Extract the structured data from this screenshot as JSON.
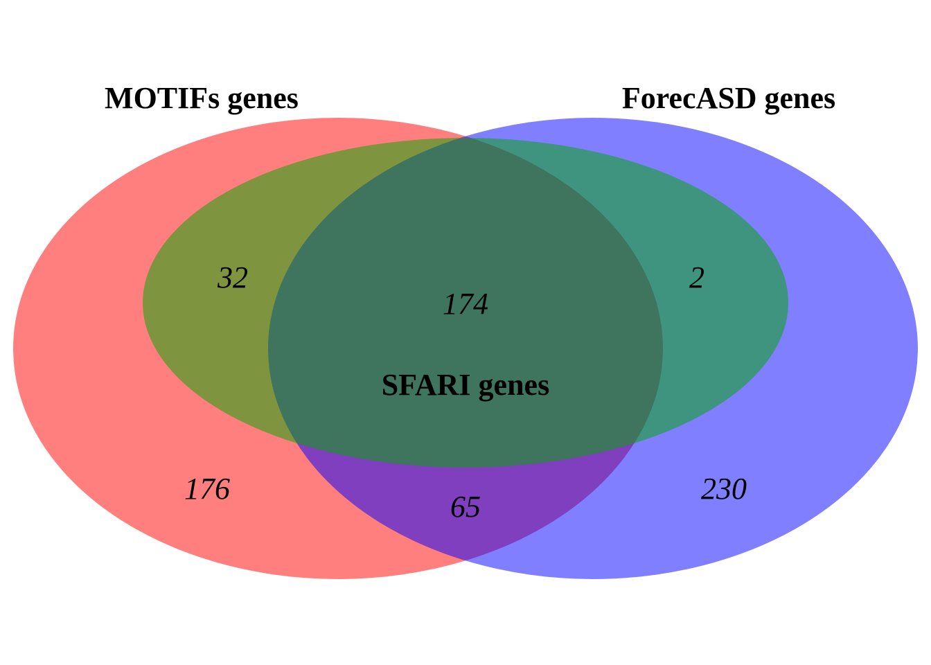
{
  "sets": {
    "motifs": {
      "label": "MOTIFs genes",
      "color": "#ff0000"
    },
    "forecasd": {
      "label": "ForecASD genes",
      "color": "#0000ff"
    },
    "sfari": {
      "label": "SFARI genes",
      "color": "#00aa00"
    }
  },
  "regions": {
    "motifs_only": "176",
    "forecasd_only": "230",
    "motifs_forecasd_only": "65",
    "motifs_sfari_only": "32",
    "forecasd_sfari_only": "2",
    "all_three": "174"
  },
  "style": {
    "fill_opacity": 0.5
  }
}
